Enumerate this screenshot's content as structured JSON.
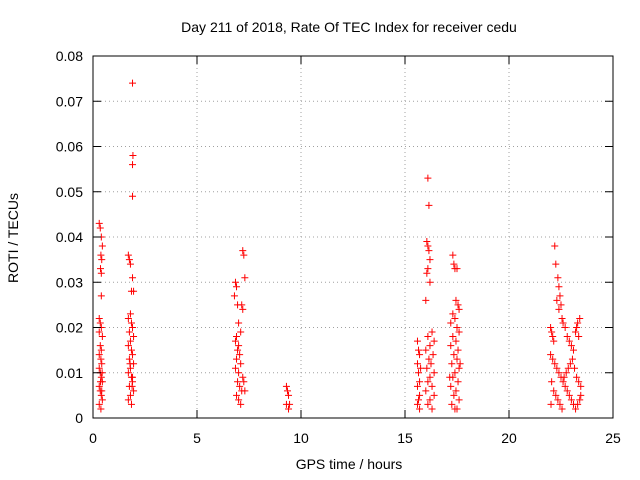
{
  "chart_data": {
    "type": "scatter",
    "title": "Day 211 of 2018, Rate Of TEC Index for receiver cedu",
    "xlabel": "GPS time / hours",
    "ylabel": "ROTI / TECUs",
    "xlim": [
      0,
      25
    ],
    "ylim": [
      0,
      0.08
    ],
    "xticks": [
      0,
      5,
      10,
      15,
      20,
      25
    ],
    "xtick_labels": [
      "0",
      "5",
      "10",
      "15",
      "20",
      "25"
    ],
    "yticks": [
      0,
      0.01,
      0.02,
      0.03,
      0.04,
      0.05,
      0.06,
      0.07,
      0.08
    ],
    "ytick_labels": [
      "0",
      "0.01",
      "0.02",
      "0.03",
      "0.04",
      "0.05",
      "0.06",
      "0.07",
      "0.08"
    ],
    "grid": true,
    "marker": "plus",
    "marker_color": "#ff0000",
    "series": [
      {
        "name": "ROTI",
        "points": [
          [
            0.3,
            0.043
          ],
          [
            0.35,
            0.042
          ],
          [
            0.4,
            0.04
          ],
          [
            0.45,
            0.038
          ],
          [
            0.38,
            0.036
          ],
          [
            0.42,
            0.035
          ],
          [
            0.36,
            0.033
          ],
          [
            0.4,
            0.032
          ],
          [
            0.4,
            0.027
          ],
          [
            0.3,
            0.022
          ],
          [
            0.35,
            0.021
          ],
          [
            0.4,
            0.02
          ],
          [
            0.3,
            0.019
          ],
          [
            0.45,
            0.018
          ],
          [
            0.35,
            0.016
          ],
          [
            0.4,
            0.015
          ],
          [
            0.3,
            0.014
          ],
          [
            0.38,
            0.013
          ],
          [
            0.42,
            0.012
          ],
          [
            0.3,
            0.011
          ],
          [
            0.35,
            0.01
          ],
          [
            0.4,
            0.009
          ],
          [
            0.45,
            0.008
          ],
          [
            0.3,
            0.007
          ],
          [
            0.35,
            0.006
          ],
          [
            0.4,
            0.005
          ],
          [
            0.45,
            0.004
          ],
          [
            0.3,
            0.003
          ],
          [
            0.38,
            0.002
          ],
          [
            0.42,
            0.006
          ],
          [
            0.36,
            0.008
          ],
          [
            0.44,
            0.01
          ],
          [
            1.7,
            0.036
          ],
          [
            1.75,
            0.035
          ],
          [
            1.8,
            0.034
          ],
          [
            1.9,
            0.031
          ],
          [
            1.85,
            0.028
          ],
          [
            1.95,
            0.028
          ],
          [
            1.9,
            0.074
          ],
          [
            1.92,
            0.058
          ],
          [
            1.9,
            0.056
          ],
          [
            1.9,
            0.049
          ],
          [
            1.8,
            0.023
          ],
          [
            1.7,
            0.022
          ],
          [
            1.85,
            0.021
          ],
          [
            1.9,
            0.02
          ],
          [
            1.75,
            0.019
          ],
          [
            1.95,
            0.018
          ],
          [
            1.8,
            0.017
          ],
          [
            1.7,
            0.016
          ],
          [
            1.85,
            0.015
          ],
          [
            1.9,
            0.014
          ],
          [
            1.75,
            0.013
          ],
          [
            1.95,
            0.012
          ],
          [
            1.8,
            0.011
          ],
          [
            1.7,
            0.01
          ],
          [
            1.85,
            0.009
          ],
          [
            1.9,
            0.008
          ],
          [
            1.75,
            0.007
          ],
          [
            1.95,
            0.006
          ],
          [
            1.8,
            0.005
          ],
          [
            1.7,
            0.004
          ],
          [
            1.85,
            0.003
          ],
          [
            1.9,
            0.009
          ],
          [
            1.78,
            0.012
          ],
          [
            1.88,
            0.007
          ],
          [
            6.85,
            0.03
          ],
          [
            6.9,
            0.029
          ],
          [
            6.8,
            0.027
          ],
          [
            6.95,
            0.025
          ],
          [
            7.0,
            0.021
          ],
          [
            7.1,
            0.019
          ],
          [
            7.2,
            0.037
          ],
          [
            7.25,
            0.036
          ],
          [
            7.3,
            0.031
          ],
          [
            7.15,
            0.025
          ],
          [
            7.2,
            0.024
          ],
          [
            6.9,
            0.018
          ],
          [
            6.85,
            0.017
          ],
          [
            7.0,
            0.016
          ],
          [
            6.95,
            0.015
          ],
          [
            7.05,
            0.014
          ],
          [
            6.9,
            0.013
          ],
          [
            7.1,
            0.012
          ],
          [
            6.85,
            0.011
          ],
          [
            7.0,
            0.01
          ],
          [
            7.2,
            0.009
          ],
          [
            6.95,
            0.008
          ],
          [
            7.05,
            0.007
          ],
          [
            7.15,
            0.006
          ],
          [
            6.9,
            0.005
          ],
          [
            7.0,
            0.004
          ],
          [
            7.1,
            0.003
          ],
          [
            7.25,
            0.008
          ],
          [
            7.3,
            0.006
          ],
          [
            9.3,
            0.007
          ],
          [
            9.35,
            0.006
          ],
          [
            9.4,
            0.005
          ],
          [
            9.3,
            0.003
          ],
          [
            9.45,
            0.003
          ],
          [
            9.4,
            0.002
          ],
          [
            15.6,
            0.017
          ],
          [
            15.65,
            0.015
          ],
          [
            15.7,
            0.014
          ],
          [
            15.6,
            0.012
          ],
          [
            15.75,
            0.011
          ],
          [
            15.65,
            0.01
          ],
          [
            15.7,
            0.008
          ],
          [
            15.6,
            0.007
          ],
          [
            15.7,
            0.005
          ],
          [
            15.65,
            0.004
          ],
          [
            15.6,
            0.003
          ],
          [
            15.7,
            0.002
          ],
          [
            16.1,
            0.053
          ],
          [
            16.15,
            0.047
          ],
          [
            16.05,
            0.039
          ],
          [
            16.1,
            0.038
          ],
          [
            16.15,
            0.037
          ],
          [
            16.2,
            0.035
          ],
          [
            16.1,
            0.033
          ],
          [
            16.05,
            0.032
          ],
          [
            16.0,
            0.026
          ],
          [
            16.2,
            0.03
          ],
          [
            16.3,
            0.019
          ],
          [
            16.1,
            0.018
          ],
          [
            16.4,
            0.017
          ],
          [
            16.2,
            0.016
          ],
          [
            16.0,
            0.015
          ],
          [
            16.35,
            0.014
          ],
          [
            16.15,
            0.013
          ],
          [
            16.25,
            0.012
          ],
          [
            16.05,
            0.011
          ],
          [
            16.4,
            0.01
          ],
          [
            16.2,
            0.009
          ],
          [
            16.1,
            0.008
          ],
          [
            16.3,
            0.007
          ],
          [
            16.0,
            0.006
          ],
          [
            16.4,
            0.005
          ],
          [
            16.2,
            0.004
          ],
          [
            16.1,
            0.003
          ],
          [
            16.3,
            0.002
          ],
          [
            17.3,
            0.036
          ],
          [
            17.35,
            0.034
          ],
          [
            17.4,
            0.033
          ],
          [
            17.5,
            0.033
          ],
          [
            17.45,
            0.026
          ],
          [
            17.55,
            0.025
          ],
          [
            17.6,
            0.024
          ],
          [
            17.3,
            0.023
          ],
          [
            17.4,
            0.022
          ],
          [
            17.2,
            0.021
          ],
          [
            17.5,
            0.02
          ],
          [
            17.6,
            0.019
          ],
          [
            17.3,
            0.018
          ],
          [
            17.45,
            0.017
          ],
          [
            17.2,
            0.016
          ],
          [
            17.55,
            0.015
          ],
          [
            17.35,
            0.014
          ],
          [
            17.5,
            0.013
          ],
          [
            17.25,
            0.012
          ],
          [
            17.6,
            0.011
          ],
          [
            17.4,
            0.01
          ],
          [
            17.3,
            0.009
          ],
          [
            17.55,
            0.008
          ],
          [
            17.2,
            0.007
          ],
          [
            17.45,
            0.006
          ],
          [
            17.35,
            0.005
          ],
          [
            17.6,
            0.004
          ],
          [
            17.25,
            0.003
          ],
          [
            17.5,
            0.002
          ],
          [
            17.4,
            0.002
          ],
          [
            17.15,
            0.009
          ],
          [
            17.65,
            0.012
          ],
          [
            22.0,
            0.02
          ],
          [
            22.05,
            0.019
          ],
          [
            22.1,
            0.018
          ],
          [
            22.15,
            0.017
          ],
          [
            22.2,
            0.038
          ],
          [
            22.25,
            0.034
          ],
          [
            22.35,
            0.031
          ],
          [
            22.4,
            0.029
          ],
          [
            22.45,
            0.027
          ],
          [
            22.3,
            0.026
          ],
          [
            22.5,
            0.025
          ],
          [
            22.4,
            0.024
          ],
          [
            22.55,
            0.022
          ],
          [
            22.6,
            0.021
          ],
          [
            22.7,
            0.02
          ],
          [
            22.8,
            0.018
          ],
          [
            22.9,
            0.017
          ],
          [
            23.0,
            0.016
          ],
          [
            23.1,
            0.015
          ],
          [
            23.2,
            0.019
          ],
          [
            23.3,
            0.021
          ],
          [
            23.4,
            0.022
          ],
          [
            23.25,
            0.02
          ],
          [
            23.35,
            0.018
          ],
          [
            22.0,
            0.014
          ],
          [
            22.1,
            0.013
          ],
          [
            22.2,
            0.012
          ],
          [
            22.3,
            0.011
          ],
          [
            22.4,
            0.01
          ],
          [
            22.5,
            0.009
          ],
          [
            22.6,
            0.008
          ],
          [
            22.7,
            0.007
          ],
          [
            22.8,
            0.006
          ],
          [
            22.9,
            0.005
          ],
          [
            23.0,
            0.004
          ],
          [
            23.1,
            0.003
          ],
          [
            23.2,
            0.002
          ],
          [
            23.3,
            0.003
          ],
          [
            23.4,
            0.004
          ],
          [
            23.45,
            0.005
          ],
          [
            22.05,
            0.008
          ],
          [
            22.15,
            0.006
          ],
          [
            22.25,
            0.005
          ],
          [
            22.35,
            0.004
          ],
          [
            22.45,
            0.003
          ],
          [
            22.55,
            0.002
          ],
          [
            22.65,
            0.009
          ],
          [
            22.75,
            0.01
          ],
          [
            22.85,
            0.011
          ],
          [
            22.95,
            0.012
          ],
          [
            23.05,
            0.013
          ],
          [
            23.15,
            0.011
          ],
          [
            23.25,
            0.009
          ],
          [
            23.35,
            0.008
          ],
          [
            23.45,
            0.007
          ],
          [
            22.02,
            0.003
          ]
        ]
      }
    ]
  }
}
